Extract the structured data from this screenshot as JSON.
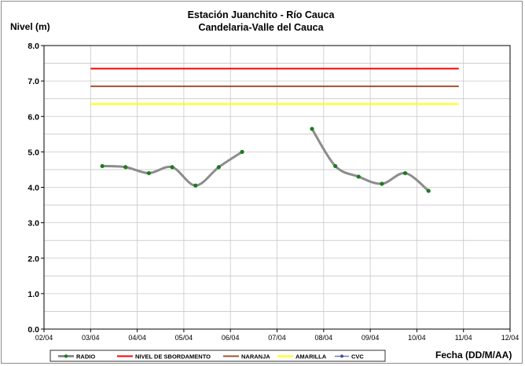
{
  "chart_data": {
    "type": "line",
    "title": "Estación Juanchito - Río Cauca",
    "subtitle": "Candelaria-Valle del Cauca",
    "ylabel": "Nivel (m)",
    "xlabel": "Fecha (DD/M/AA)",
    "ylim": [
      0,
      8
    ],
    "y_ticks": [
      "0.0",
      "1.0",
      "2.0",
      "3.0",
      "4.0",
      "5.0",
      "6.0",
      "7.0",
      "8.0"
    ],
    "xlim": [
      0,
      10
    ],
    "x_tick_labels": [
      "02/04",
      "03/04",
      "04/04",
      "05/04",
      "06/04",
      "07/04",
      "08/04",
      "09/04",
      "10/04",
      "11/04",
      "12/04"
    ],
    "grid": true,
    "legend_position": "bottom",
    "series": [
      {
        "name": "RADIO",
        "color": "#8c8c8c",
        "segments": [
          [
            [
              1.25,
              4.6
            ],
            [
              1.75,
              4.57
            ],
            [
              2.25,
              4.4
            ],
            [
              2.75,
              4.57
            ],
            [
              3.25,
              4.05
            ],
            [
              3.75,
              4.57
            ],
            [
              4.25,
              5.0
            ]
          ],
          [
            [
              5.75,
              5.65
            ],
            [
              6.25,
              4.6
            ],
            [
              6.75,
              4.3
            ],
            [
              7.25,
              4.1
            ],
            [
              7.75,
              4.4
            ],
            [
              8.25,
              3.9
            ]
          ]
        ]
      },
      {
        "name": "NIVEL DE SBORDAMENTO",
        "color": "#ff0000",
        "x": [
          1.0,
          8.9
        ],
        "y": [
          7.35,
          7.35
        ]
      },
      {
        "name": "NARANJA",
        "color": "#a0522d",
        "x": [
          1.0,
          8.9
        ],
        "y": [
          6.85,
          6.85
        ]
      },
      {
        "name": "AMARILLA",
        "color": "#ffff00",
        "x": [
          1.0,
          8.9
        ],
        "y": [
          6.35,
          6.35
        ]
      },
      {
        "name": "CVC",
        "color": "#1f7a1f",
        "points": [
          [
            1.25,
            4.6
          ],
          [
            1.75,
            4.57
          ],
          [
            2.25,
            4.4
          ],
          [
            2.75,
            4.57
          ],
          [
            3.25,
            4.05
          ],
          [
            3.75,
            4.57
          ],
          [
            4.25,
            5.0
          ],
          [
            5.75,
            5.65
          ],
          [
            6.25,
            4.6
          ],
          [
            6.75,
            4.3
          ],
          [
            7.25,
            4.1
          ],
          [
            7.75,
            4.4
          ],
          [
            8.25,
            3.9
          ]
        ]
      }
    ]
  }
}
